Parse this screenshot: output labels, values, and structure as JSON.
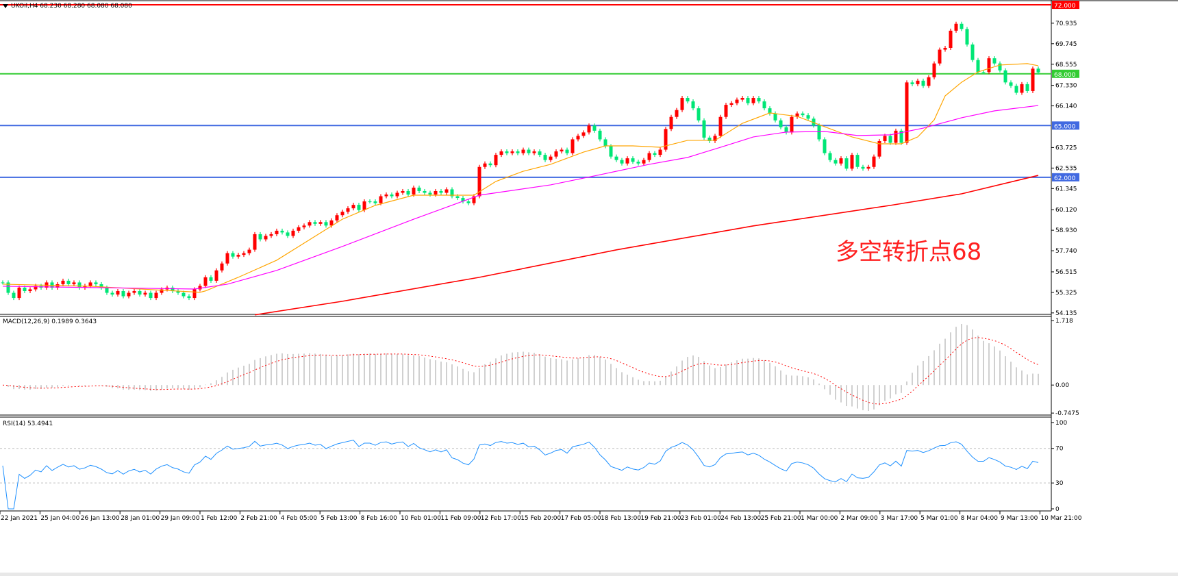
{
  "header": {
    "symbol_info": "UKOil,H4  68.230 68.280 68.080 68.080"
  },
  "annotation": {
    "text": "多空转折点68",
    "color": "#ff2020"
  },
  "colors": {
    "bull": "#ff0000",
    "bear": "#00e676",
    "hist": "#c0c0c0",
    "signal": "#ff0000",
    "rsi": "#1e90ff"
  },
  "chart_data": [
    {
      "type": "candlestick",
      "title": "UKOil,H4",
      "ylim": [
        54.05,
        72.28
      ],
      "yticks": [
        "70.935",
        "69.745",
        "68.555",
        "67.330",
        "66.140",
        "63.725",
        "62.535",
        "61.345",
        "60.120",
        "58.930",
        "57.740",
        "56.515",
        "55.325",
        "54.135"
      ],
      "closes": [
        55.9,
        55.3,
        55.0,
        55.6,
        55.4,
        55.5,
        55.7,
        55.6,
        55.9,
        55.6,
        55.8,
        56.0,
        55.8,
        55.9,
        55.6,
        55.7,
        55.9,
        55.8,
        55.6,
        55.3,
        55.2,
        55.4,
        55.1,
        55.3,
        55.4,
        55.2,
        55.3,
        55.0,
        55.3,
        55.5,
        55.6,
        55.4,
        55.3,
        55.1,
        55.0,
        55.5,
        55.7,
        56.2,
        56.0,
        56.6,
        57.0,
        57.6,
        57.4,
        57.5,
        57.6,
        57.8,
        58.7,
        58.4,
        58.6,
        58.7,
        58.9,
        58.8,
        58.6,
        58.9,
        59.1,
        59.2,
        59.4,
        59.3,
        59.4,
        59.2,
        59.5,
        59.8,
        60.0,
        60.2,
        60.4,
        60.1,
        60.6,
        60.6,
        60.5,
        60.9,
        61.0,
        60.9,
        61.1,
        61.2,
        61.0,
        61.4,
        61.2,
        61.1,
        61.0,
        61.2,
        61.1,
        61.3,
        60.9,
        60.8,
        60.6,
        60.5,
        60.9,
        62.6,
        62.8,
        62.7,
        63.3,
        63.5,
        63.4,
        63.5,
        63.4,
        63.6,
        63.4,
        63.5,
        63.3,
        63.0,
        63.2,
        63.5,
        63.6,
        63.4,
        64.2,
        64.4,
        64.6,
        65.0,
        64.7,
        64.2,
        63.8,
        63.2,
        63.0,
        62.8,
        63.1,
        62.9,
        62.8,
        63.0,
        63.4,
        63.3,
        63.6,
        64.8,
        65.5,
        65.9,
        66.6,
        66.4,
        66.0,
        65.3,
        64.3,
        64.1,
        64.4,
        65.5,
        66.2,
        66.3,
        66.5,
        66.6,
        66.3,
        66.6,
        66.4,
        66.0,
        65.7,
        65.3,
        64.9,
        64.6,
        65.5,
        65.7,
        65.6,
        65.4,
        65.0,
        64.2,
        63.4,
        63.0,
        62.8,
        63.1,
        62.5,
        63.3,
        62.6,
        62.5,
        62.6,
        63.2,
        64.1,
        64.4,
        64.0,
        64.7,
        64.0,
        67.5,
        67.4,
        67.6,
        67.3,
        67.8,
        68.6,
        69.4,
        69.5,
        70.5,
        70.9,
        70.6,
        69.7,
        68.8,
        68.1,
        68.1,
        68.9,
        68.6,
        68.2,
        67.5,
        67.3,
        66.9,
        67.4,
        67.0,
        68.3,
        68.08
      ],
      "moving_averages": [
        {
          "color": "#ffa500",
          "points": [
            [
              0,
              55.8
            ],
            [
              16,
              55.68
            ],
            [
              36,
              55.33
            ],
            [
              37,
              55.41
            ],
            [
              43,
              56.2
            ],
            [
              50,
              57.19
            ],
            [
              56,
              58.38
            ],
            [
              62,
              59.57
            ],
            [
              68,
              60.37
            ],
            [
              75,
              60.96
            ],
            [
              81,
              60.96
            ],
            [
              86,
              60.96
            ],
            [
              90,
              61.76
            ],
            [
              95,
              62.35
            ],
            [
              100,
              62.75
            ],
            [
              106,
              63.46
            ],
            [
              110,
              63.82
            ],
            [
              115,
              63.82
            ],
            [
              120,
              63.74
            ],
            [
              125,
              64.14
            ],
            [
              130,
              64.14
            ],
            [
              135,
              65.13
            ],
            [
              140,
              65.73
            ],
            [
              145,
              65.53
            ],
            [
              150,
              64.93
            ],
            [
              155,
              64.34
            ],
            [
              160,
              63.94
            ],
            [
              164,
              63.94
            ],
            [
              167,
              64.34
            ],
            [
              170,
              65.33
            ],
            [
              172,
              66.72
            ],
            [
              175,
              67.51
            ],
            [
              178,
              68.11
            ],
            [
              182,
              68.51
            ],
            [
              187,
              68.59
            ],
            [
              189,
              68.47
            ]
          ]
        },
        {
          "color": "#ff00ff",
          "points": [
            [
              0,
              55.68
            ],
            [
              35,
              55.52
            ],
            [
              41,
              55.8
            ],
            [
              50,
              56.6
            ],
            [
              62,
              57.99
            ],
            [
              75,
              59.57
            ],
            [
              87,
              60.96
            ],
            [
              100,
              61.56
            ],
            [
              108,
              62.08
            ],
            [
              118,
              62.75
            ],
            [
              125,
              63.15
            ],
            [
              131,
              63.74
            ],
            [
              137,
              64.34
            ],
            [
              143,
              64.62
            ],
            [
              150,
              64.66
            ],
            [
              156,
              64.42
            ],
            [
              162,
              64.46
            ],
            [
              168,
              64.85
            ],
            [
              175,
              65.45
            ],
            [
              181,
              65.85
            ],
            [
              189,
              66.16
            ]
          ]
        },
        {
          "color": "#ff0000",
          "points": [
            [
              46,
              54.02
            ],
            [
              62,
              54.81
            ],
            [
              87,
              56.2
            ],
            [
              112,
              57.79
            ],
            [
              137,
              59.18
            ],
            [
              162,
              60.37
            ],
            [
              175,
              61.04
            ],
            [
              189,
              62.11
            ]
          ]
        }
      ],
      "hlines": [
        {
          "value": 72.0,
          "label": "72.000",
          "color": "#ff0000"
        },
        {
          "value": 68.0,
          "label": "68.000",
          "color": "#33cc33"
        },
        {
          "value": 65.0,
          "label": "65.000",
          "color": "#4169e1"
        },
        {
          "value": 62.0,
          "label": "62.000",
          "color": "#4169e1"
        }
      ],
      "xlabels": [
        "22 Jan 2021",
        "25 Jan 04:00",
        "26 Jan 13:00",
        "28 Jan 01:00",
        "29 Jan 09:00",
        "1 Feb 12:00",
        "2 Feb 21:00",
        "4 Feb 05:00",
        "5 Feb 13:00",
        "8 Feb 16:00",
        "10 Feb 01:00",
        "11 Feb 09:00",
        "12 Feb 17:00",
        "15 Feb 20:00",
        "17 Feb 05:00",
        "18 Feb 13:00",
        "19 Feb 21:00",
        "23 Feb 01:00",
        "24 Feb 13:00",
        "25 Feb 21:00",
        "1 Mar 00:00",
        "2 Mar 09:00",
        "3 Mar 17:00",
        "5 Mar 01:00",
        "8 Mar 04:00",
        "9 Mar 13:00",
        "10 Mar 21:00"
      ]
    },
    {
      "type": "bar",
      "label": "MACD(12,26,9) 0.1989 0.3643",
      "params": [
        12,
        26,
        9
      ],
      "ylim": [
        -0.8,
        1.83
      ],
      "yticks": [
        "1.718",
        "0.00",
        "-0.7475"
      ],
      "ytick_values": [
        1.718,
        0,
        -0.7475
      ]
    },
    {
      "type": "line",
      "label": "RSI(14) 53.4941",
      "period": 14,
      "ylim": [
        -1.6,
        105.5
      ],
      "levels": [
        70,
        30
      ],
      "yticks": [
        "100",
        "70",
        "30",
        "0"
      ],
      "ytick_values": [
        100,
        70,
        30,
        0
      ]
    }
  ]
}
